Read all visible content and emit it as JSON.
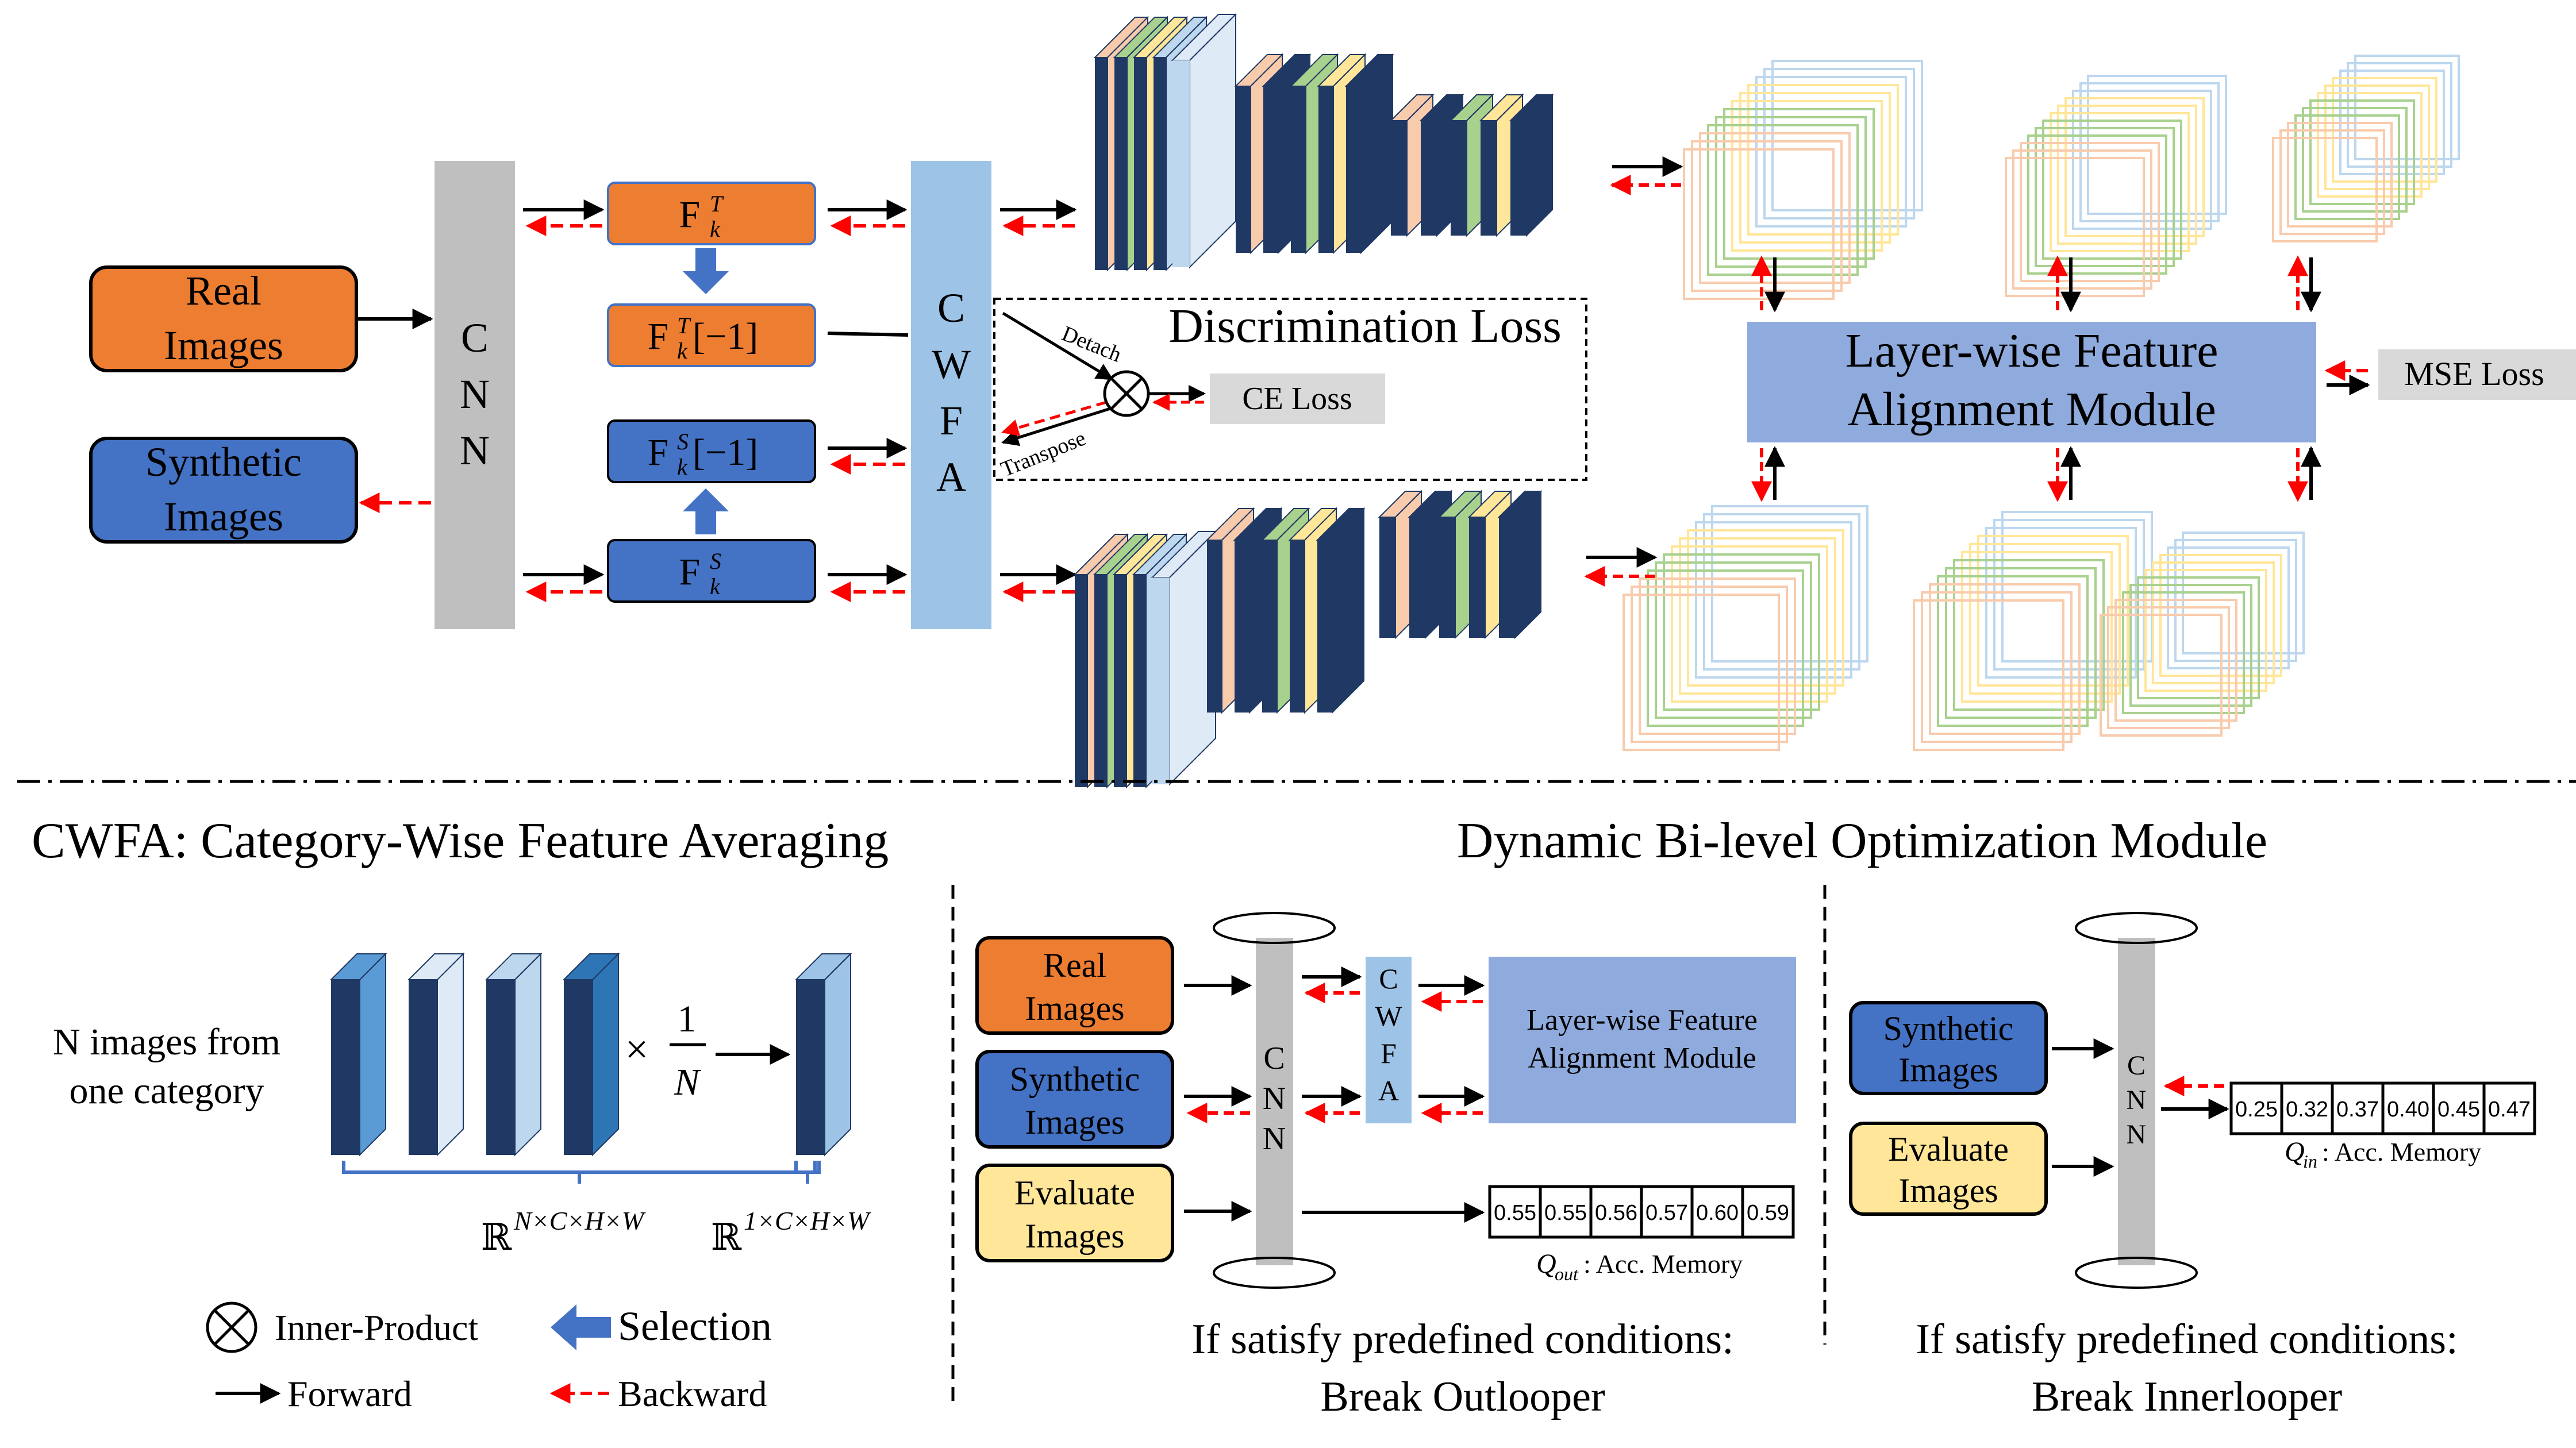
{
  "top": {
    "real_images": [
      "Real",
      "Images"
    ],
    "synthetic_images": [
      "Synthetic",
      "Images"
    ],
    "cnn": [
      "C",
      "N",
      "N"
    ],
    "cwfa": [
      "C",
      "W",
      "F",
      "A"
    ],
    "f_t": {
      "base": "F",
      "sup": "T",
      "sub": "k"
    },
    "f_t_last": {
      "base": "F",
      "sup": "T",
      "sub": "k",
      "suffix": "[−1]"
    },
    "f_s_last": {
      "base": "F",
      "sup": "S",
      "sub": "k",
      "suffix": "[−1]"
    },
    "f_s": {
      "base": "F",
      "sup": "S",
      "sub": "k"
    },
    "discrimination_loss": "Discrimination Loss",
    "detach": "Detach",
    "transpose": "Transpose",
    "ce_loss": "CE Loss",
    "layerwise_module": [
      "Layer-wise Feature",
      "Alignment Module"
    ],
    "mse_loss": "MSE Loss"
  },
  "cwfa_section": {
    "title": "CWFA: Category-Wise Feature Averaging",
    "n_images": [
      "N images from",
      "one category"
    ],
    "times": "×",
    "frac_num": "1",
    "frac_den": "N",
    "dim_in": {
      "base": "ℝ",
      "exp": "N×C×H×W"
    },
    "dim_out": {
      "base": "ℝ",
      "exp": "1×C×H×W"
    }
  },
  "legend": {
    "inner_product": "Inner-Product",
    "selection": "Selection",
    "forward": "Forward",
    "backward": "Backward"
  },
  "dbo": {
    "title": "Dynamic Bi-level Optimization Module",
    "real_images": [
      "Real",
      "Images"
    ],
    "synthetic_images": [
      "Synthetic",
      "Images"
    ],
    "evaluate_images": [
      "Evaluate",
      "Images"
    ],
    "cnn": [
      "C",
      "N",
      "N"
    ],
    "cwfa": [
      "C",
      "W",
      "F",
      "A"
    ],
    "layerwise_module": [
      "Layer-wise Feature",
      "Alignment Module"
    ],
    "q_out_values": [
      "0.55",
      "0.55",
      "0.56",
      "0.57",
      "0.60",
      "0.59"
    ],
    "q_out_label": {
      "sym": "Q",
      "sub": "out",
      "text": ": Acc. Memory"
    },
    "break_outer": [
      "If satisfy predefined conditions:",
      "Break Outlooper"
    ]
  },
  "inner": {
    "synthetic_images": [
      "Synthetic",
      "Images"
    ],
    "evaluate_images": [
      "Evaluate",
      "Images"
    ],
    "cnn": [
      "C",
      "N",
      "N"
    ],
    "q_in_values": [
      "0.25",
      "0.32",
      "0.37",
      "0.40",
      "0.45",
      "0.47"
    ],
    "q_in_label": {
      "sym": "Q",
      "sub": "in",
      "text": ": Acc. Memory"
    },
    "break_inner": [
      "If satisfy predefined conditions:",
      "Break Innerlooper"
    ]
  },
  "colors": {
    "orange": "#ED7D31",
    "blue": "#4472C4",
    "yellow": "#FFE699",
    "grey": "#BFBFBF",
    "light_blue": "#9DC3E6",
    "module_blue": "#8FAADC",
    "navy": "#1F3864",
    "backward_red": "#FF0000"
  }
}
